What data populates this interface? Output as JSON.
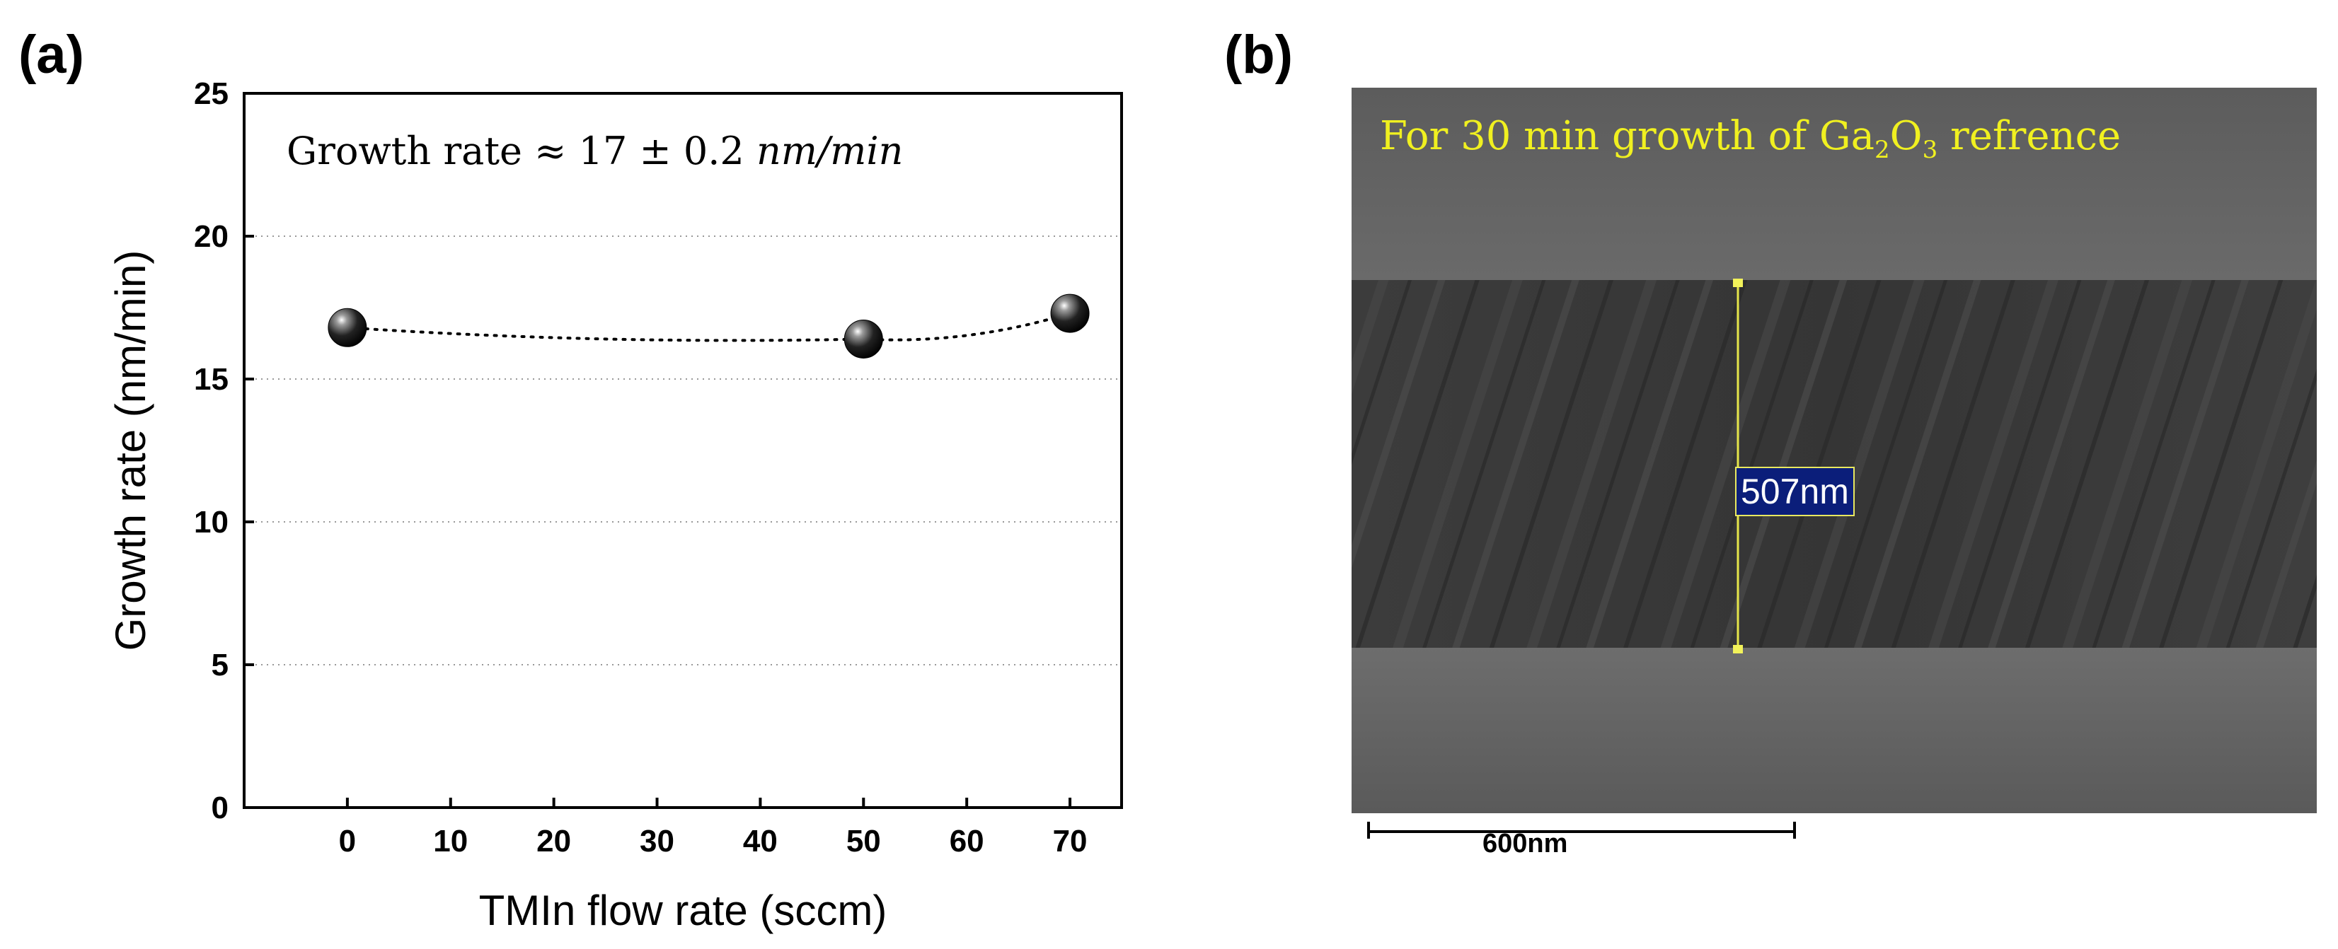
{
  "panels": {
    "a_label": "(a)",
    "b_label": "(b)"
  },
  "chart_data": {
    "type": "scatter",
    "xlabel": "TMIn flow rate (sccm)",
    "ylabel": "Growth rate (nm/min)",
    "xlim": [
      -10,
      75
    ],
    "ylim": [
      0,
      25
    ],
    "xticks": [
      0,
      10,
      20,
      30,
      40,
      50,
      60,
      70
    ],
    "yticks": [
      0,
      5,
      10,
      15,
      20,
      25
    ],
    "grid": "horizontal dotted",
    "annotation": {
      "prefix": "Growth rate",
      "symbol": "≈",
      "value": "17 ± 0.2",
      "unit": "nm/min"
    },
    "series": [
      {
        "x": [
          0,
          50,
          70
        ],
        "y": [
          16.8,
          16.4,
          17.3
        ],
        "marker": "sphere",
        "color": "#111111",
        "line": "dotted"
      }
    ]
  },
  "sem_image": {
    "title_prefix": "For 30 min growth of Ga",
    "title_sub1": "2",
    "title_mid": "O",
    "title_sub2": "3",
    "title_suffix": " refrence",
    "measurement": "507nm",
    "scalebar": "600nm",
    "title_color": "#f0f020"
  }
}
